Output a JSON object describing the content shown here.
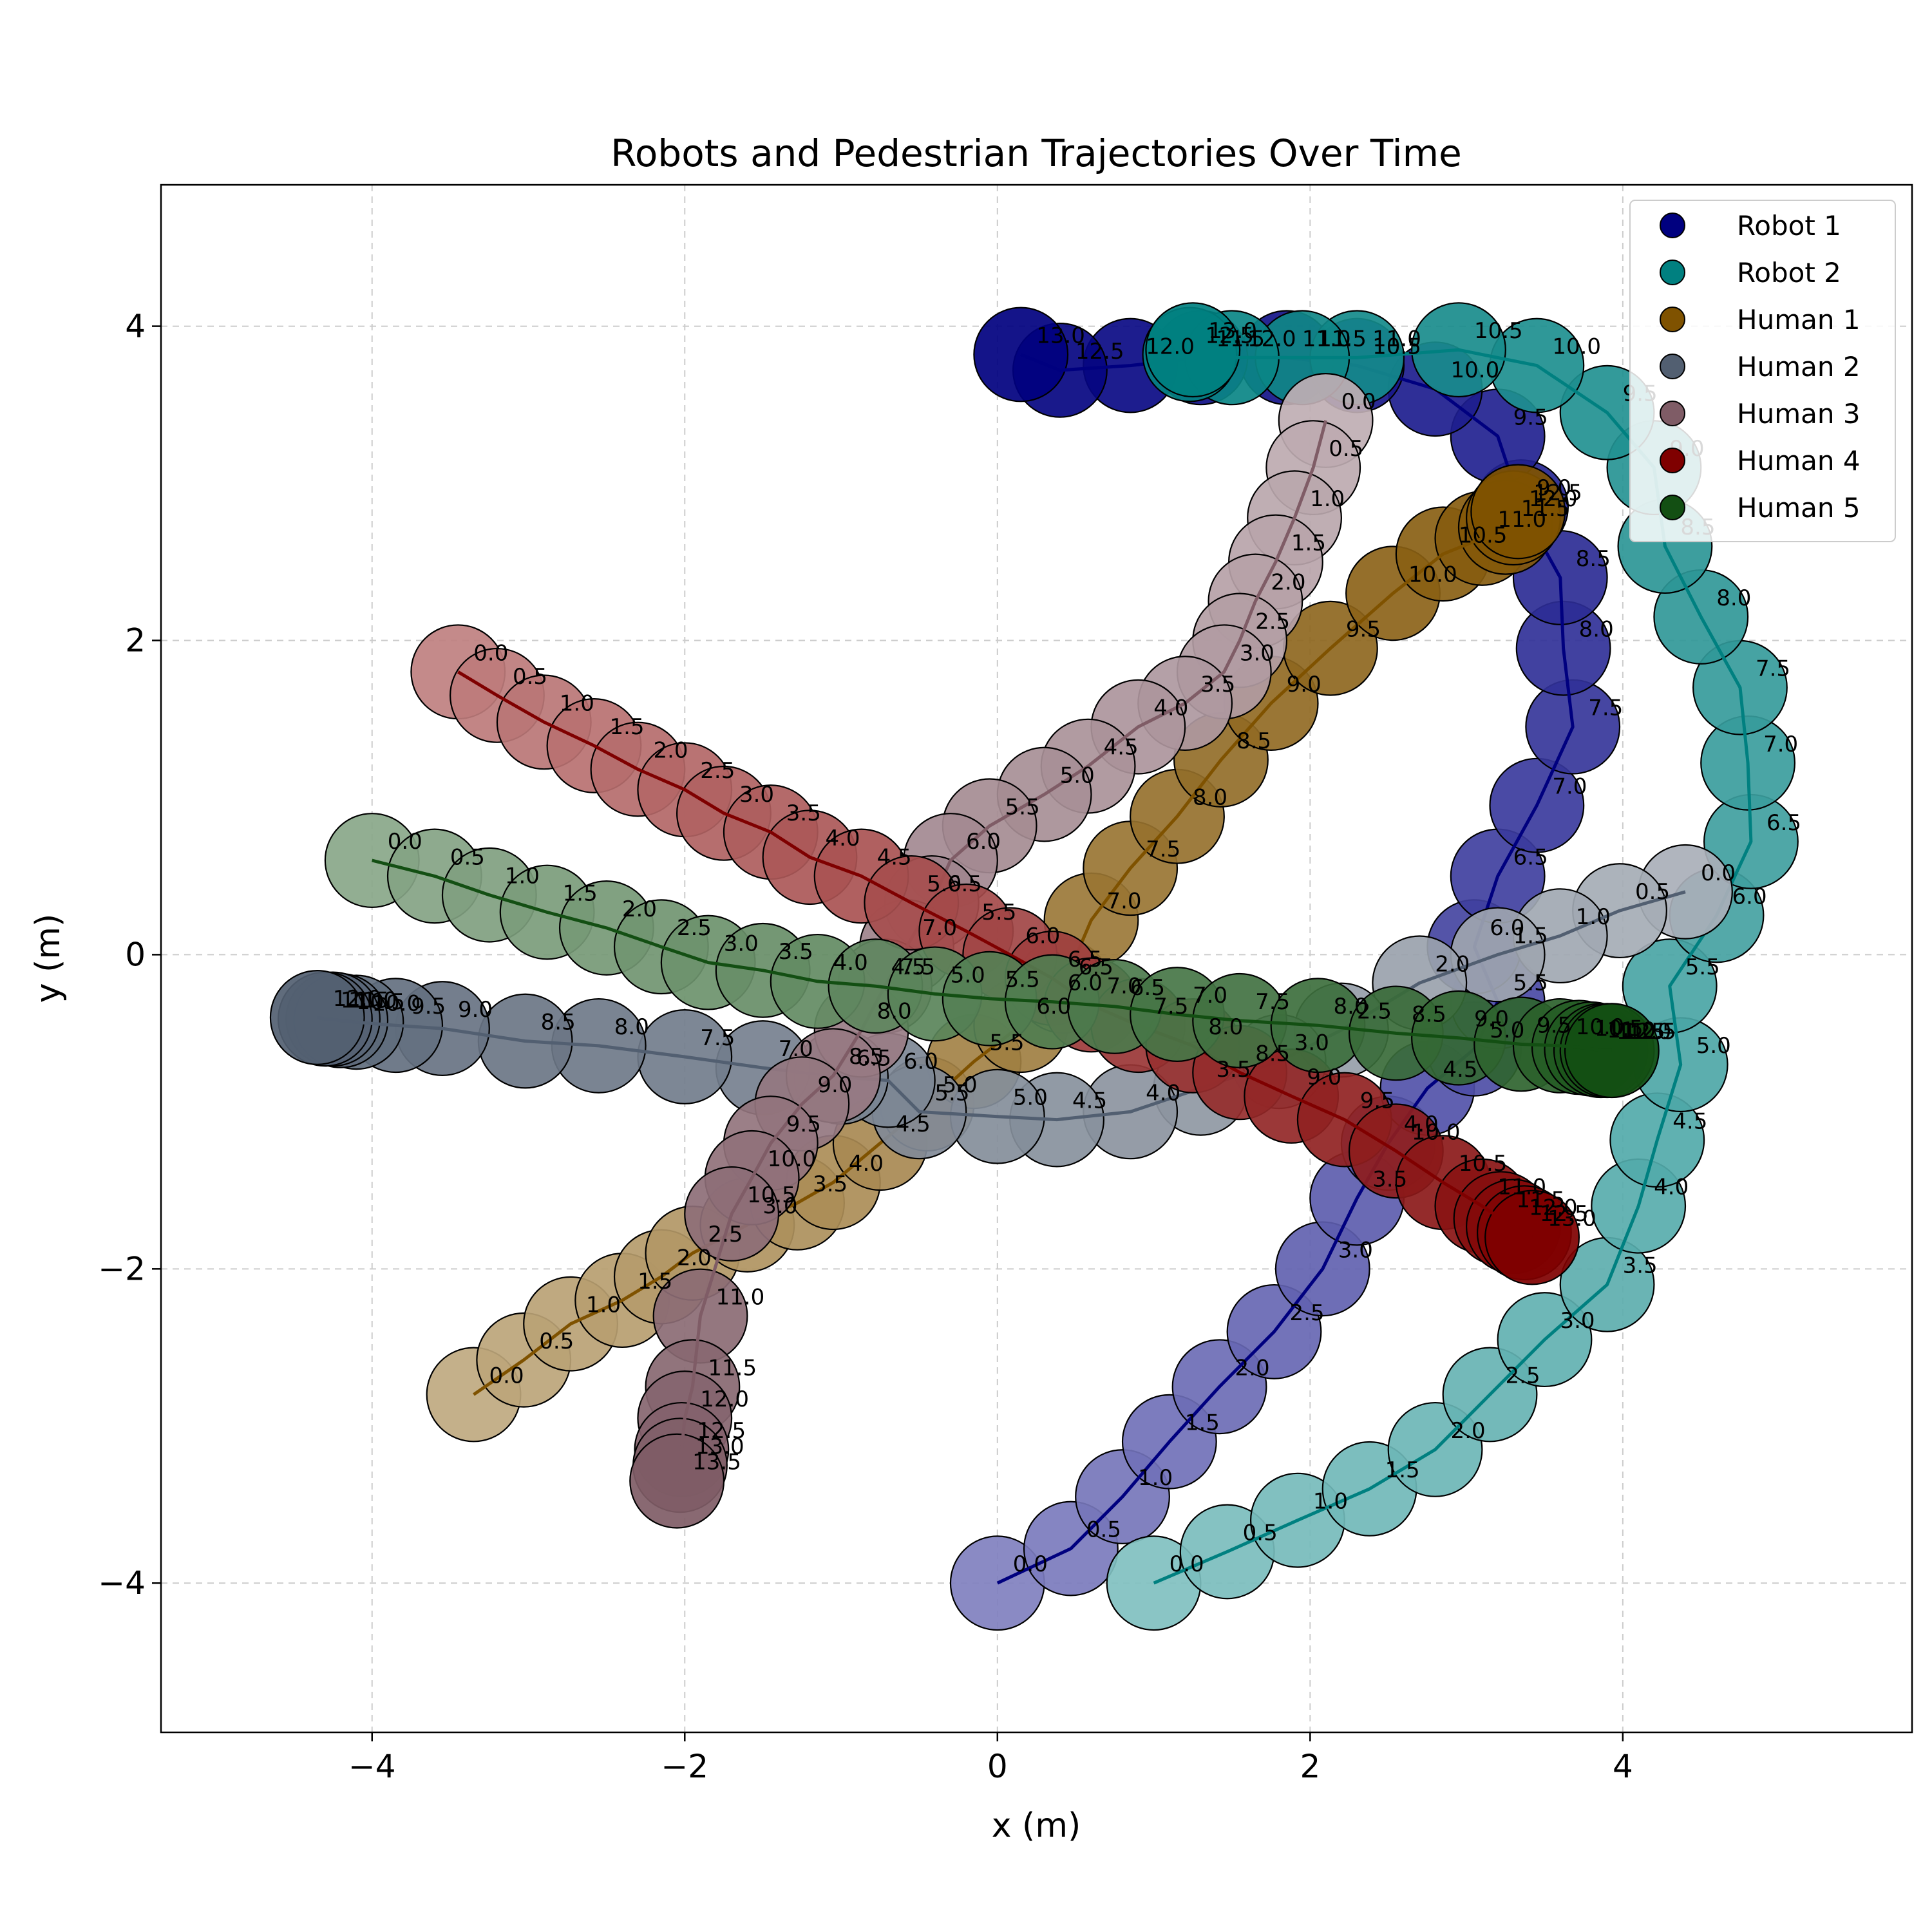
{
  "chart_data": {
    "type": "scatter",
    "title": "Robots and Pedestrian Trajectories Over Time",
    "xlabel": "x (m)",
    "ylabel": "y (m)",
    "xlim": [
      -5.35,
      5.85
    ],
    "ylim": [
      -4.95,
      4.9
    ],
    "xticks": [
      -4,
      -2,
      0,
      2,
      4
    ],
    "yticks": [
      -4,
      -2,
      0,
      2,
      4
    ],
    "xtick_labels": [
      "−4",
      "−2",
      "0",
      "2",
      "4"
    ],
    "ytick_labels": [
      "−4",
      "−2",
      "0",
      "2",
      "4"
    ],
    "grid": true,
    "legend_position": "top-right",
    "marker_radius_m": 0.3,
    "label_step": 0.5,
    "series": [
      {
        "name": "Robot 1",
        "color": "#00007f",
        "label_color": "#000000",
        "points": [
          [
            0.0,
            -4.0
          ],
          [
            0.47,
            -3.78
          ],
          [
            0.8,
            -3.45
          ],
          [
            1.1,
            -3.1
          ],
          [
            1.42,
            -2.75
          ],
          [
            1.77,
            -2.4
          ],
          [
            2.08,
            -2.0
          ],
          [
            2.3,
            -1.55
          ],
          [
            2.5,
            -1.2
          ],
          [
            2.75,
            -0.85
          ],
          [
            3.05,
            -0.6
          ],
          [
            3.2,
            -0.3
          ],
          [
            3.05,
            0.05
          ],
          [
            3.2,
            0.5
          ],
          [
            3.45,
            0.95
          ],
          [
            3.68,
            1.45
          ],
          [
            3.62,
            1.95
          ],
          [
            3.6,
            2.4
          ],
          [
            3.35,
            2.85
          ],
          [
            3.2,
            3.3
          ],
          [
            2.8,
            3.6
          ],
          [
            2.3,
            3.75
          ],
          [
            1.85,
            3.8
          ],
          [
            1.3,
            3.8
          ],
          [
            0.85,
            3.75
          ],
          [
            0.4,
            3.72
          ],
          [
            0.15,
            3.82
          ]
        ]
      },
      {
        "name": "Robot 2",
        "color": "#008080",
        "label_color": "#000000",
        "points": [
          [
            1.0,
            -4.0
          ],
          [
            1.47,
            -3.8
          ],
          [
            1.92,
            -3.6
          ],
          [
            2.38,
            -3.4
          ],
          [
            2.8,
            -3.15
          ],
          [
            3.15,
            -2.8
          ],
          [
            3.5,
            -2.45
          ],
          [
            3.9,
            -2.1
          ],
          [
            4.1,
            -1.6
          ],
          [
            4.22,
            -1.18
          ],
          [
            4.37,
            -0.7
          ],
          [
            4.3,
            -0.2
          ],
          [
            4.6,
            0.25
          ],
          [
            4.82,
            0.72
          ],
          [
            4.8,
            1.22
          ],
          [
            4.75,
            1.7
          ],
          [
            4.5,
            2.15
          ],
          [
            4.27,
            2.6
          ],
          [
            4.2,
            3.1
          ],
          [
            3.9,
            3.45
          ],
          [
            3.45,
            3.75
          ],
          [
            2.95,
            3.85
          ],
          [
            2.3,
            3.8
          ],
          [
            1.95,
            3.8
          ],
          [
            1.5,
            3.8
          ],
          [
            1.23,
            3.82
          ],
          [
            1.25,
            3.85
          ]
        ]
      },
      {
        "name": "Human 1",
        "color": "#7f5200",
        "label_color": "#000000",
        "points": [
          [
            -3.35,
            -2.8
          ],
          [
            -3.03,
            -2.58
          ],
          [
            -2.73,
            -2.35
          ],
          [
            -2.4,
            -2.2
          ],
          [
            -2.15,
            -2.05
          ],
          [
            -1.95,
            -1.9
          ],
          [
            -1.6,
            -1.72
          ],
          [
            -1.28,
            -1.58
          ],
          [
            -1.05,
            -1.45
          ],
          [
            -0.75,
            -1.2
          ],
          [
            -0.45,
            -0.95
          ],
          [
            -0.15,
            -0.68
          ],
          [
            0.15,
            -0.45
          ],
          [
            0.42,
            -0.2
          ],
          [
            0.6,
            0.22
          ],
          [
            0.85,
            0.55
          ],
          [
            1.15,
            0.88
          ],
          [
            1.43,
            1.24
          ],
          [
            1.75,
            1.6
          ],
          [
            2.13,
            1.95
          ],
          [
            2.53,
            2.3
          ],
          [
            2.85,
            2.55
          ],
          [
            3.1,
            2.65
          ],
          [
            3.25,
            2.72
          ],
          [
            3.3,
            2.78
          ],
          [
            3.33,
            2.82
          ]
        ]
      },
      {
        "name": "Human 2",
        "color": "#525f71",
        "label_color": "#000000",
        "points": [
          [
            4.4,
            0.4
          ],
          [
            3.98,
            0.28
          ],
          [
            3.6,
            0.12
          ],
          [
            3.2,
            0.0
          ],
          [
            2.7,
            -0.18
          ],
          [
            2.2,
            -0.48
          ],
          [
            1.8,
            -0.68
          ],
          [
            1.3,
            -0.85
          ],
          [
            0.85,
            -1.0
          ],
          [
            0.38,
            -1.05
          ],
          [
            0.0,
            -1.03
          ],
          [
            -0.5,
            -1.0
          ],
          [
            -0.7,
            -0.8
          ],
          [
            -1.0,
            -0.78
          ],
          [
            -1.5,
            -0.72
          ],
          [
            -2.0,
            -0.65
          ],
          [
            -2.55,
            -0.58
          ],
          [
            -3.02,
            -0.55
          ],
          [
            -3.55,
            -0.47
          ],
          [
            -3.85,
            -0.45
          ],
          [
            -4.1,
            -0.43
          ],
          [
            -4.2,
            -0.42
          ],
          [
            -4.25,
            -0.41
          ],
          [
            -4.3,
            -0.41
          ],
          [
            -4.35,
            -0.4
          ]
        ]
      },
      {
        "name": "Human 3",
        "color": "#7f5c66",
        "label_color": "#000000",
        "points": [
          [
            2.1,
            3.4
          ],
          [
            2.02,
            3.1
          ],
          [
            1.9,
            2.78
          ],
          [
            1.78,
            2.5
          ],
          [
            1.65,
            2.25
          ],
          [
            1.55,
            2.0
          ],
          [
            1.45,
            1.8
          ],
          [
            1.2,
            1.6
          ],
          [
            0.9,
            1.45
          ],
          [
            0.58,
            1.2
          ],
          [
            0.3,
            1.02
          ],
          [
            -0.05,
            0.82
          ],
          [
            -0.3,
            0.6
          ],
          [
            -0.42,
            0.33
          ],
          [
            -0.58,
            0.05
          ],
          [
            -0.72,
            -0.2
          ],
          [
            -0.87,
            -0.48
          ],
          [
            -1.05,
            -0.77
          ],
          [
            -1.25,
            -0.95
          ],
          [
            -1.45,
            -1.2
          ],
          [
            -1.57,
            -1.42
          ],
          [
            -1.7,
            -1.65
          ],
          [
            -1.9,
            -2.3
          ],
          [
            -1.95,
            -2.75
          ],
          [
            -2.0,
            -2.95
          ],
          [
            -2.02,
            -3.15
          ],
          [
            -2.03,
            -3.25
          ],
          [
            -2.05,
            -3.35
          ]
        ]
      },
      {
        "name": "Human 4",
        "color": "#7f0000",
        "label_color": "#000000",
        "points": [
          [
            -3.45,
            1.8
          ],
          [
            -3.2,
            1.65
          ],
          [
            -2.9,
            1.48
          ],
          [
            -2.58,
            1.33
          ],
          [
            -2.3,
            1.18
          ],
          [
            -2.0,
            1.05
          ],
          [
            -1.75,
            0.9
          ],
          [
            -1.45,
            0.78
          ],
          [
            -1.2,
            0.62
          ],
          [
            -0.87,
            0.5
          ],
          [
            -0.55,
            0.33
          ],
          [
            -0.2,
            0.15
          ],
          [
            0.08,
            0.0
          ],
          [
            0.35,
            -0.15
          ],
          [
            0.6,
            -0.32
          ],
          [
            0.9,
            -0.45
          ],
          [
            1.25,
            -0.58
          ],
          [
            1.55,
            -0.75
          ],
          [
            1.88,
            -0.9
          ],
          [
            2.22,
            -1.05
          ],
          [
            2.55,
            -1.25
          ],
          [
            2.85,
            -1.45
          ],
          [
            3.1,
            -1.6
          ],
          [
            3.22,
            -1.68
          ],
          [
            3.3,
            -1.73
          ],
          [
            3.37,
            -1.77
          ],
          [
            3.42,
            -1.8
          ]
        ]
      },
      {
        "name": "Human 5",
        "color": "#134f13",
        "label_color": "#000000",
        "points": [
          [
            -4.0,
            0.6
          ],
          [
            -3.6,
            0.5
          ],
          [
            -3.25,
            0.38
          ],
          [
            -2.88,
            0.27
          ],
          [
            -2.5,
            0.17
          ],
          [
            -2.15,
            0.05
          ],
          [
            -1.85,
            -0.05
          ],
          [
            -1.5,
            -0.1
          ],
          [
            -1.15,
            -0.17
          ],
          [
            -0.78,
            -0.2
          ],
          [
            -0.4,
            -0.25
          ],
          [
            -0.05,
            -0.28
          ],
          [
            0.35,
            -0.3
          ],
          [
            0.75,
            -0.33
          ],
          [
            1.15,
            -0.38
          ],
          [
            1.55,
            -0.42
          ],
          [
            2.05,
            -0.45
          ],
          [
            2.55,
            -0.5
          ],
          [
            2.95,
            -0.53
          ],
          [
            3.35,
            -0.57
          ],
          [
            3.6,
            -0.58
          ],
          [
            3.72,
            -0.59
          ],
          [
            3.8,
            -0.6
          ],
          [
            3.86,
            -0.61
          ],
          [
            3.9,
            -0.61
          ],
          [
            3.93,
            -0.61
          ]
        ]
      }
    ],
    "legend": [
      "Robot 1",
      "Robot 2",
      "Human 1",
      "Human 2",
      "Human 3",
      "Human 4",
      "Human 5"
    ]
  }
}
